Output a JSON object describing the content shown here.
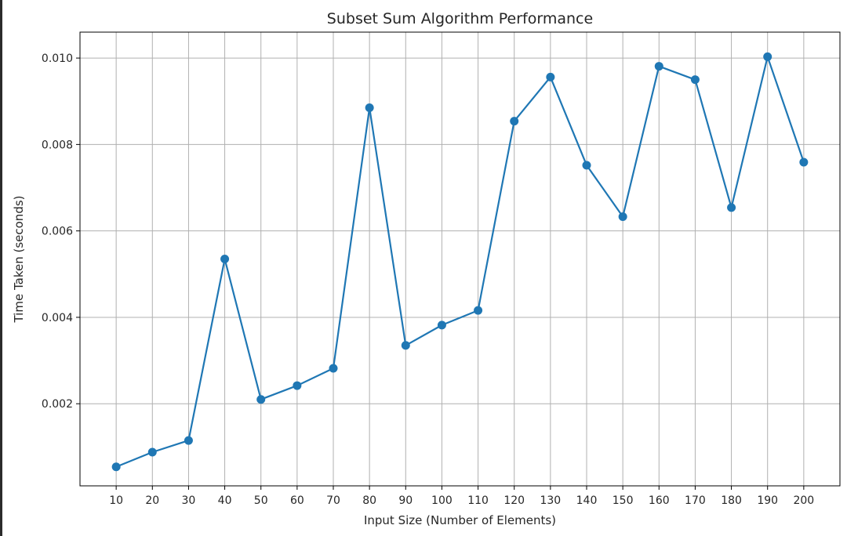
{
  "chart_data": {
    "type": "line",
    "title": "Subset Sum Algorithm Performance",
    "xlabel": "Input Size (Number of Elements)",
    "ylabel": "Time Taken (seconds)",
    "x": [
      10,
      20,
      30,
      40,
      50,
      60,
      70,
      80,
      90,
      100,
      110,
      120,
      130,
      140,
      150,
      160,
      170,
      180,
      190,
      200
    ],
    "x_tick_labels": [
      "10",
      "20",
      "30",
      "40",
      "50",
      "60",
      "70",
      "80",
      "90",
      "100",
      "110",
      "120",
      "130",
      "140",
      "150",
      "160",
      "170",
      "180",
      "190",
      "200"
    ],
    "y_ticks": [
      0.002,
      0.004,
      0.006,
      0.008,
      0.01
    ],
    "y_tick_labels": [
      "0.002",
      "0.004",
      "0.006",
      "0.008",
      "0.010"
    ],
    "series": [
      {
        "values": [
          0.00054,
          0.00088,
          0.00115,
          0.00535,
          0.0021,
          0.00242,
          0.00282,
          0.00885,
          0.00335,
          0.00382,
          0.00416,
          0.00854,
          0.00956,
          0.00752,
          0.00633,
          0.00981,
          0.0095,
          0.00654,
          0.01003,
          0.00759
        ],
        "color": "#1f77b4",
        "marker": "circle"
      }
    ],
    "xlim": [
      0,
      210
    ],
    "ylim": [
      0.0001,
      0.0106
    ],
    "grid": true,
    "legend": false
  }
}
